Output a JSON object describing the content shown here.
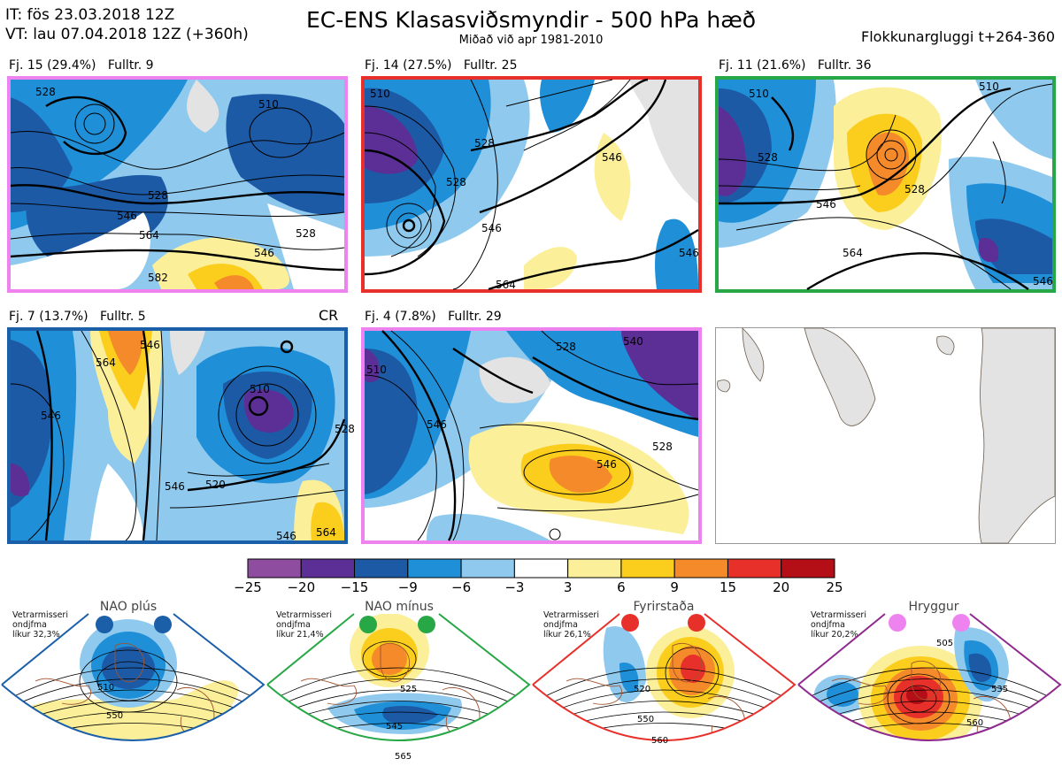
{
  "header": {
    "it_line": "IT: fös 23.03.2018 12Z",
    "vt_line": "VT: lau 07.04.2018 12Z  (+360h)",
    "title": "EC-ENS Klasasviðsmyndir - 500 hPa hæð",
    "subtitle": "Miðað við apr 1981-2010",
    "right_label": "Flokkunargluggi t+264-360"
  },
  "chart_data": [
    {
      "type": "heatmap",
      "title": "EC-ENS Klasasviðsmyndir - 500 hPa hæð",
      "clusters": [
        {
          "label": "Fj. 15 (29.4%)",
          "representative": "Fulltr. 9",
          "probability_pct": 29.4,
          "frame_color": "#ee82ee",
          "contour_labels": [
            "528",
            "510",
            "528",
            "546",
            "564",
            "546",
            "582",
            "528"
          ]
        },
        {
          "label": "Fj. 14 (27.5%)",
          "representative": "Fulltr. 25",
          "probability_pct": 27.5,
          "frame_color": "#e8302b",
          "contour_labels": [
            "510",
            "528",
            "546",
            "528",
            "546",
            "564",
            "546"
          ]
        },
        {
          "label": "Fj. 11 (21.6%)",
          "representative": "Fulltr. 36",
          "probability_pct": 21.6,
          "frame_color": "#27a745",
          "contour_labels": [
            "510",
            "510",
            "528",
            "528",
            "546",
            "564",
            "546"
          ]
        },
        {
          "label": "Fj. 7 (13.7%)",
          "representative": "Fulltr. 5",
          "probability_pct": 13.7,
          "frame_color": "#1a5fa8",
          "tag": "CR",
          "contour_labels": [
            "564",
            "546",
            "546",
            "510",
            "528",
            "546",
            "520",
            "546",
            "564"
          ]
        },
        {
          "label": "Fj. 4 (7.8%)",
          "representative": "Fulltr. 29",
          "probability_pct": 7.8,
          "frame_color": "#ee82ee",
          "contour_labels": [
            "510",
            "528",
            "546",
            "528",
            "546",
            "540"
          ]
        }
      ],
      "colorbar": {
        "ticks": [
          "−25",
          "−20",
          "−15",
          "−9",
          "−6",
          "−3",
          "3",
          "6",
          "9",
          "15",
          "20",
          "25"
        ],
        "colors": [
          "#8e4d9e",
          "#5b2f96",
          "#1d5aa6",
          "#1f8fd8",
          "#8fcaee",
          "#ffffff",
          "#fbef9a",
          "#fbcd1c",
          "#f58a2a",
          "#e8302b",
          "#b40e16"
        ]
      },
      "regimes": [
        {
          "name": "NAO plús",
          "note_line1": "Vetrarmisseri",
          "note_line2": "ondjfma",
          "note_line3": "líkur 32,3%",
          "color": "#1a5fa8",
          "contour_labels": [
            "510",
            "550"
          ]
        },
        {
          "name": "NAO mínus",
          "note_line1": "Vetrarmisseri",
          "note_line2": "ondjfma",
          "note_line3": "líkur 21,4%",
          "color": "#27a745",
          "contour_labels": [
            "525",
            "545",
            "565"
          ]
        },
        {
          "name": "Fyrirstaða",
          "note_line1": "Vetrarmisseri",
          "note_line2": "ondjfma",
          "note_line3": "líkur 26,1%",
          "color": "#e8302b",
          "contour_labels": [
            "520",
            "550",
            "560"
          ]
        },
        {
          "name": "Hryggur",
          "note_line1": "Vetrarmisseri",
          "note_line2": "ondjfma",
          "note_line3": "líkur 20,2%",
          "color": "#ee82ee",
          "contour_labels": [
            "505",
            "535",
            "560"
          ]
        }
      ]
    }
  ]
}
